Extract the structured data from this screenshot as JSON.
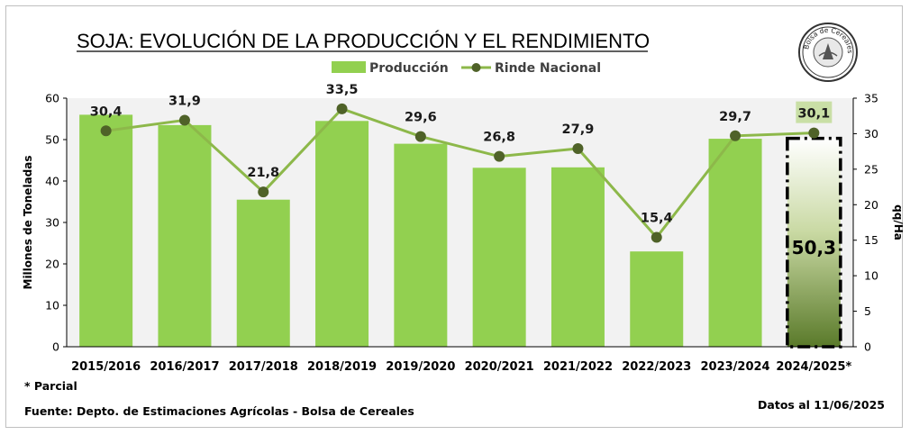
{
  "chart_data": {
    "type": "bar",
    "title": "SOJA: EVOLUCIÓN DE LA PRODUCCIÓN Y EL RENDIMIENTO",
    "categories": [
      "2015/2016",
      "2016/2017",
      "2017/2018",
      "2018/2019",
      "2019/2020",
      "2020/2021",
      "2021/2022",
      "2022/2023",
      "2023/2024",
      "2024/2025*"
    ],
    "series": [
      {
        "name": "Producción",
        "type": "bar",
        "axis": "left",
        "color": "#92d050",
        "values": [
          56.0,
          53.5,
          35.5,
          54.5,
          49.0,
          43.2,
          43.3,
          23.0,
          50.2,
          50.3
        ],
        "labels": [
          "",
          "",
          "",
          "",
          "",
          "",
          "",
          "",
          "",
          "50,3"
        ]
      },
      {
        "name": "Rinde Nacional",
        "type": "line",
        "axis": "right",
        "color": "#8db84a",
        "marker_color": "#4f6228",
        "values": [
          30.4,
          31.9,
          21.8,
          33.5,
          29.6,
          26.8,
          27.9,
          15.4,
          29.7,
          30.1
        ],
        "labels": [
          "30,4",
          "31,9",
          "21,8",
          "33,5",
          "29,6",
          "26,8",
          "27,9",
          "15,4",
          "29,7",
          "30,1"
        ]
      }
    ],
    "ylabel": "Millones de Toneladas",
    "ylim": [
      0,
      60
    ],
    "yticks": [
      "0",
      "10",
      "20",
      "30",
      "40",
      "50",
      "60"
    ],
    "y2label": "qq/Ha",
    "y2lim": [
      0,
      35
    ],
    "y2ticks": [
      "0",
      "5",
      "10",
      "15",
      "20",
      "25",
      "30",
      "35"
    ],
    "legend": "top-center",
    "grid": false,
    "plot_background": "#f2f2f2",
    "footnote": "* Parcial",
    "source": "Fuente: Depto. de Estimaciones Agrícolas - Bolsa de Cereales",
    "date_note": "Datos al 11/06/2025",
    "logo_text": "Bolsa de Cereales"
  }
}
